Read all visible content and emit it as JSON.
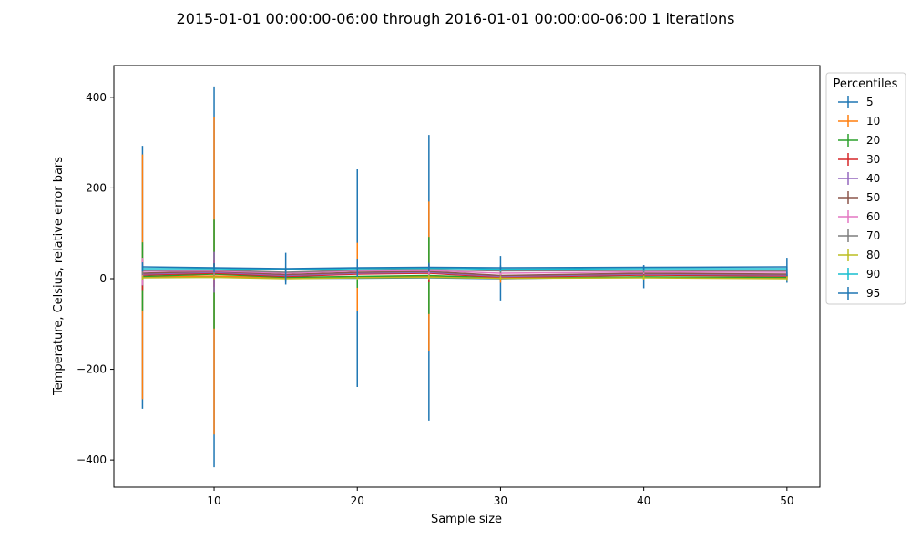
{
  "chart_data": {
    "type": "line",
    "title": "2015-01-01 00:00:00-06:00 through 2016-01-01 00:00:00-06:00 1 iterations",
    "xlabel": "Sample size",
    "ylabel": "Temperature, Celsius, relative error bars",
    "xlim": [
      3,
      52.3
    ],
    "ylim": [
      -460,
      470
    ],
    "x_ticks": [
      10,
      20,
      30,
      40,
      50
    ],
    "y_ticks": [
      -400,
      -200,
      0,
      200,
      400
    ],
    "y_tick_labels": [
      "−400",
      "−200",
      "0",
      "200",
      "400"
    ],
    "x": [
      5,
      10,
      15,
      20,
      25,
      30,
      40,
      50
    ],
    "legend_title": "Percentiles",
    "legend_position": "outside-right",
    "grid": false,
    "series": [
      {
        "name": "5",
        "color": "#1f77b4",
        "values": [
          3,
          4,
          1,
          1,
          2,
          0,
          4,
          1
        ],
        "errors": [
          290,
          420,
          8,
          240,
          315,
          50,
          25,
          10
        ]
      },
      {
        "name": "10",
        "color": "#ff7f0e",
        "values": [
          4,
          6,
          2,
          4,
          5,
          1,
          3,
          2
        ],
        "errors": [
          270,
          350,
          5,
          75,
          165,
          10,
          5,
          5
        ]
      },
      {
        "name": "20",
        "color": "#2ca02c",
        "values": [
          5,
          10,
          3,
          5,
          7,
          2,
          4,
          3
        ],
        "errors": [
          75,
          120,
          5,
          25,
          85,
          5,
          5,
          5
        ]
      },
      {
        "name": "30",
        "color": "#d62728",
        "values": [
          8,
          12,
          5,
          10,
          12,
          3,
          8,
          6
        ],
        "errors": [
          35,
          30,
          5,
          10,
          20,
          5,
          5,
          5
        ]
      },
      {
        "name": "40",
        "color": "#9467bd",
        "values": [
          10,
          14,
          7,
          12,
          14,
          5,
          10,
          8
        ],
        "errors": [
          25,
          45,
          5,
          10,
          15,
          5,
          5,
          5
        ]
      },
      {
        "name": "50",
        "color": "#8c564b",
        "values": [
          12,
          16,
          9,
          14,
          16,
          7,
          12,
          10
        ],
        "errors": [
          15,
          15,
          5,
          5,
          10,
          5,
          5,
          5
        ]
      },
      {
        "name": "60",
        "color": "#e377c2",
        "values": [
          16,
          17,
          12,
          17,
          18,
          12,
          15,
          14
        ],
        "errors": [
          30,
          10,
          5,
          5,
          10,
          5,
          5,
          5
        ]
      },
      {
        "name": "70",
        "color": "#7f7f7f",
        "values": [
          18,
          19,
          14,
          19,
          20,
          17,
          18,
          17
        ],
        "errors": [
          10,
          10,
          5,
          5,
          5,
          5,
          5,
          5
        ]
      },
      {
        "name": "80",
        "color": "#bcbd22",
        "values": [
          2,
          3,
          0,
          2,
          3,
          1,
          2,
          0
        ],
        "errors": [
          5,
          5,
          5,
          5,
          5,
          5,
          5,
          5
        ]
      },
      {
        "name": "90",
        "color": "#17becf",
        "values": [
          22,
          22,
          20,
          22,
          23,
          21,
          22,
          22
        ],
        "errors": [
          5,
          5,
          5,
          5,
          5,
          5,
          5,
          5
        ]
      },
      {
        "name": "95",
        "color": "#1f77b4",
        "values": [
          26,
          24,
          22,
          24,
          25,
          24,
          25,
          26
        ],
        "errors": [
          10,
          10,
          35,
          20,
          10,
          5,
          5,
          20
        ]
      }
    ]
  }
}
